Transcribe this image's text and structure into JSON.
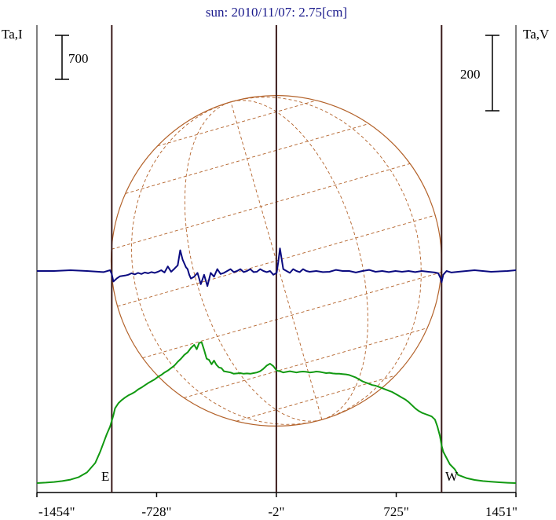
{
  "chart_data": {
    "type": "line",
    "title": "sun: 2010/11/07: 2.75[cm]",
    "ylabel_left": "Ta,I",
    "ylabel_right": "Ta,V",
    "scale_left_label": "700",
    "scale_right_label": "200",
    "limb_east_label": "E",
    "limb_west_label": "W",
    "x_ticks": [
      {
        "value": -1454,
        "label": "-1454\""
      },
      {
        "value": -728,
        "label": "-728\""
      },
      {
        "value": -2,
        "label": "-2\""
      },
      {
        "value": 725,
        "label": "725\""
      },
      {
        "value": 1451,
        "label": "1451\""
      }
    ],
    "xlim": [
      -1454,
      1451
    ],
    "vertical_lines": [
      -1000,
      -2,
      1000
    ],
    "colors": {
      "title": "#1a1a8c",
      "stokes_i": "#119911",
      "stokes_v": "#0b0b80",
      "disk": "#b3622a",
      "axes": "#000000",
      "vlines": "#3a1a1a"
    },
    "series": [
      {
        "name": "I",
        "x": [
          -1454,
          -1400,
          -1350,
          -1300,
          -1250,
          -1200,
          -1150,
          -1100,
          -1070,
          -1050,
          -1030,
          -1010,
          -1000,
          -990,
          -980,
          -960,
          -940,
          -920,
          -900,
          -880,
          -860,
          -840,
          -820,
          -800,
          -780,
          -760,
          -740,
          -720,
          -700,
          -680,
          -660,
          -640,
          -620,
          -600,
          -580,
          -560,
          -540,
          -520,
          -500,
          -485,
          -470,
          -455,
          -440,
          -425,
          -410,
          -395,
          -380,
          -365,
          -350,
          -335,
          -320,
          -300,
          -280,
          -260,
          -240,
          -220,
          -200,
          -180,
          -160,
          -140,
          -120,
          -100,
          -80,
          -60,
          -40,
          -20,
          0,
          20,
          40,
          60,
          80,
          100,
          120,
          140,
          160,
          180,
          200,
          220,
          240,
          260,
          280,
          300,
          320,
          340,
          360,
          380,
          400,
          420,
          440,
          460,
          480,
          500,
          520,
          540,
          560,
          580,
          600,
          620,
          640,
          660,
          680,
          700,
          720,
          740,
          760,
          780,
          800,
          820,
          840,
          860,
          880,
          900,
          920,
          940,
          960,
          975,
          990,
          1000,
          1010,
          1030,
          1050,
          1080,
          1100,
          1150,
          1200,
          1250,
          1300,
          1350,
          1400,
          1451
        ],
        "values": [
          0,
          8,
          18,
          32,
          55,
          95,
          170,
          320,
          500,
          640,
          780,
          900,
          990,
          1080,
          1190,
          1270,
          1320,
          1360,
          1395,
          1420,
          1450,
          1490,
          1520,
          1555,
          1590,
          1620,
          1650,
          1690,
          1720,
          1760,
          1790,
          1830,
          1870,
          1930,
          1980,
          2040,
          2080,
          2150,
          2200,
          2130,
          2230,
          2240,
          2120,
          1980,
          1960,
          1890,
          1950,
          1880,
          1840,
          1830,
          1780,
          1770,
          1760,
          1740,
          1745,
          1750,
          1740,
          1745,
          1740,
          1750,
          1760,
          1780,
          1820,
          1870,
          1900,
          1860,
          1790,
          1780,
          1760,
          1770,
          1780,
          1770,
          1760,
          1770,
          1775,
          1770,
          1760,
          1765,
          1775,
          1770,
          1760,
          1750,
          1755,
          1745,
          1740,
          1740,
          1735,
          1730,
          1720,
          1700,
          1680,
          1650,
          1620,
          1600,
          1580,
          1560,
          1550,
          1530,
          1510,
          1490,
          1470,
          1450,
          1420,
          1390,
          1360,
          1330,
          1290,
          1240,
          1190,
          1150,
          1120,
          1100,
          1080,
          1060,
          1010,
          900,
          750,
          600,
          500,
          400,
          300,
          220,
          130,
          80,
          50,
          33,
          22,
          12,
          5,
          0
        ]
      },
      {
        "name": "V",
        "x": [
          -1454,
          -1350,
          -1250,
          -1150,
          -1050,
          -1010,
          -1000,
          -990,
          -970,
          -950,
          -920,
          -900,
          -880,
          -860,
          -840,
          -820,
          -800,
          -780,
          -760,
          -740,
          -720,
          -700,
          -680,
          -660,
          -640,
          -620,
          -600,
          -585,
          -570,
          -560,
          -550,
          -540,
          -530,
          -520,
          -500,
          -480,
          -460,
          -440,
          -420,
          -400,
          -380,
          -360,
          -340,
          -320,
          -300,
          -280,
          -260,
          -240,
          -220,
          -200,
          -180,
          -160,
          -140,
          -120,
          -100,
          -80,
          -60,
          -40,
          -20,
          0,
          10,
          20,
          40,
          60,
          80,
          100,
          120,
          140,
          160,
          180,
          200,
          240,
          280,
          320,
          360,
          400,
          440,
          480,
          520,
          560,
          600,
          640,
          680,
          720,
          760,
          800,
          840,
          880,
          920,
          960,
          980,
          995,
          1000,
          1010,
          1030,
          1060,
          1100,
          1200,
          1300,
          1400,
          1451
        ],
        "values": [
          0,
          0,
          2,
          0,
          -3,
          2,
          -8,
          -28,
          -20,
          -14,
          -12,
          -10,
          -6,
          -9,
          -5,
          -8,
          -4,
          -6,
          -3,
          -5,
          -2,
          2,
          -4,
          12,
          -2,
          6,
          15,
          55,
          30,
          20,
          10,
          5,
          -10,
          -20,
          -15,
          -5,
          -35,
          -10,
          -40,
          -5,
          -15,
          5,
          -8,
          -5,
          0,
          5,
          -3,
          0,
          5,
          -3,
          0,
          5,
          -3,
          -2,
          5,
          0,
          -3,
          0,
          -10,
          -5,
          25,
          60,
          5,
          0,
          -5,
          5,
          0,
          -3,
          5,
          0,
          -2,
          0,
          -3,
          -2,
          3,
          0,
          0,
          -4,
          0,
          3,
          -2,
          0,
          -3,
          0,
          -2,
          0,
          -3,
          0,
          -2,
          -4,
          -6,
          -20,
          -30,
          -10,
          0,
          -4,
          -2,
          2,
          -2,
          0,
          2
        ]
      }
    ]
  }
}
